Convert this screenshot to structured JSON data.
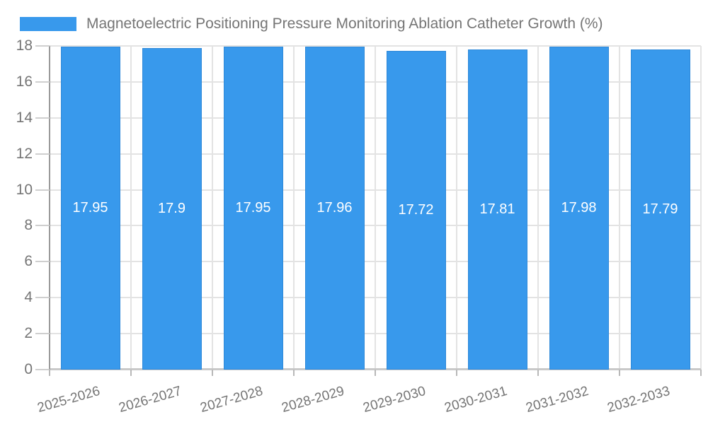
{
  "legend": {
    "series_label": "Magnetoelectric Positioning Pressure Monitoring Ablation Catheter Growth (%)",
    "swatch_color": "#3899ec"
  },
  "chart_data": {
    "type": "bar",
    "title": "Magnetoelectric Positioning Pressure Monitoring Ablation Catheter Growth (%)",
    "categories": [
      "2025-2026",
      "2026-2027",
      "2027-2028",
      "2028-2029",
      "2029-2030",
      "2030-2031",
      "2031-2032",
      "2032-2033"
    ],
    "values": [
      17.95,
      17.9,
      17.95,
      17.96,
      17.72,
      17.81,
      17.98,
      17.79
    ],
    "value_labels": [
      "17.95",
      "17.9",
      "17.95",
      "17.96",
      "17.72",
      "17.81",
      "17.98",
      "17.79"
    ],
    "xlabel": "",
    "ylabel": "",
    "ylim": [
      0,
      18
    ],
    "ytick_step": 2,
    "ytick_labels": [
      "0",
      "2",
      "4",
      "6",
      "8",
      "10",
      "12",
      "14",
      "16",
      "18"
    ],
    "grid": true,
    "legend_position": "top-left",
    "bar_color": "#3899ec",
    "value_label_color": "#ffffff",
    "axis_text_color": "#757575",
    "x_label_rotation_deg": -16
  }
}
